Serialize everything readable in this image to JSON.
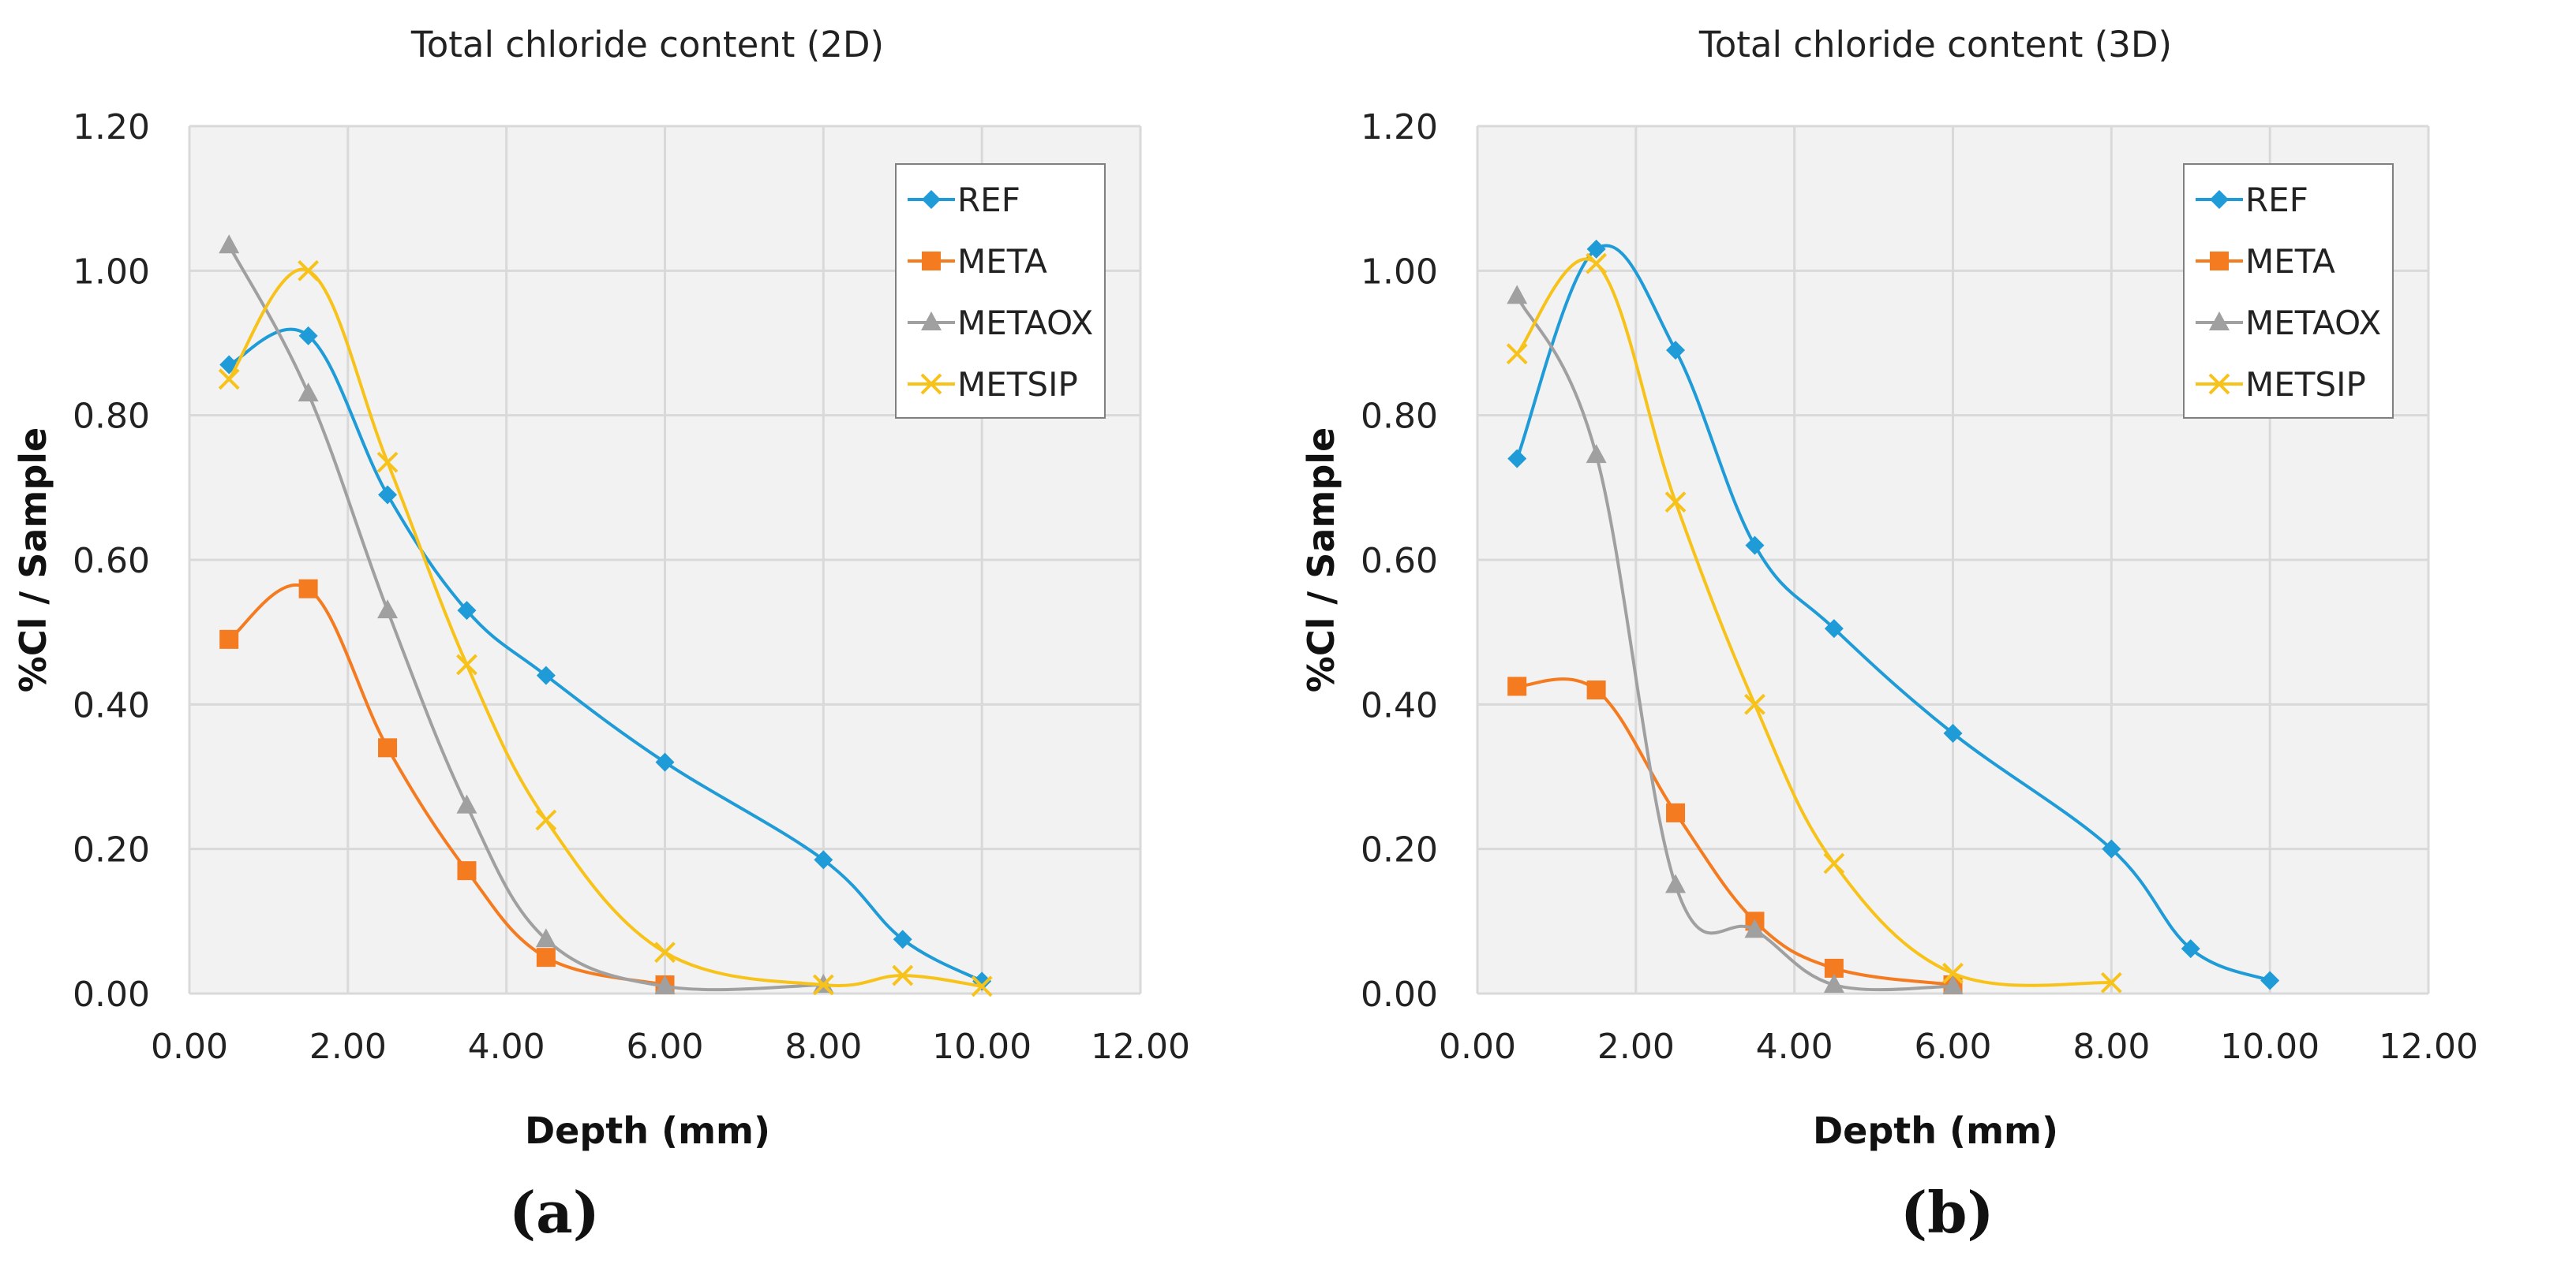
{
  "captions": [
    "(a)",
    "(b)"
  ],
  "chart_data": [
    {
      "type": "line",
      "title": "Total chloride content (2D)",
      "xlabel": "Depth (mm)",
      "ylabel": "%Cl / Sample",
      "xlim": [
        0,
        12
      ],
      "ylim": [
        0,
        1.2
      ],
      "xticks": [
        "0.00",
        "2.00",
        "4.00",
        "6.00",
        "8.00",
        "10.00",
        "12.00"
      ],
      "yticks": [
        "0.00",
        "0.20",
        "0.40",
        "0.60",
        "0.80",
        "1.00",
        "1.20"
      ],
      "grid": true,
      "legend": "top-right",
      "series": [
        {
          "name": "REF",
          "color": "#1f9bd7",
          "marker": "diamond",
          "x": [
            0.5,
            1.5,
            2.5,
            3.5,
            4.5,
            6,
            8,
            9,
            10
          ],
          "y": [
            0.87,
            0.91,
            0.69,
            0.53,
            0.44,
            0.32,
            0.185,
            0.075,
            0.017
          ]
        },
        {
          "name": "META",
          "color": "#f47b20",
          "marker": "square",
          "x": [
            0.5,
            1.5,
            2.5,
            3.5,
            4.5,
            6
          ],
          "y": [
            0.49,
            0.56,
            0.34,
            0.17,
            0.05,
            0.012
          ]
        },
        {
          "name": "METAOX",
          "color": "#a0a0a0",
          "marker": "triangle",
          "x": [
            0.5,
            1.5,
            2.5,
            3.5,
            4.5,
            6,
            8
          ],
          "y": [
            1.035,
            0.83,
            0.53,
            0.26,
            0.075,
            0.01,
            0.012
          ]
        },
        {
          "name": "METSIP",
          "color": "#f7c31a",
          "marker": "x",
          "x": [
            0.5,
            1.5,
            2.5,
            3.5,
            4.5,
            6,
            8,
            9,
            10
          ],
          "y": [
            0.85,
            1.0,
            0.735,
            0.455,
            0.24,
            0.057,
            0.012,
            0.025,
            0.01
          ]
        }
      ]
    },
    {
      "type": "line",
      "title": "Total chloride content (3D)",
      "xlabel": "Depth (mm)",
      "ylabel": "%Cl / Sample",
      "xlim": [
        0,
        12
      ],
      "ylim": [
        0,
        1.2
      ],
      "xticks": [
        "0.00",
        "2.00",
        "4.00",
        "6.00",
        "8.00",
        "10.00",
        "12.00"
      ],
      "yticks": [
        "0.00",
        "0.20",
        "0.40",
        "0.60",
        "0.80",
        "1.00",
        "1.20"
      ],
      "grid": true,
      "legend": "top-right",
      "series": [
        {
          "name": "REF",
          "color": "#1f9bd7",
          "marker": "diamond",
          "x": [
            0.5,
            1.5,
            2.5,
            3.5,
            4.5,
            6,
            8,
            9,
            10
          ],
          "y": [
            0.74,
            1.03,
            0.89,
            0.62,
            0.505,
            0.36,
            0.2,
            0.062,
            0.018
          ]
        },
        {
          "name": "META",
          "color": "#f47b20",
          "marker": "square",
          "x": [
            0.5,
            1.5,
            2.5,
            3.5,
            4.5,
            6
          ],
          "y": [
            0.425,
            0.42,
            0.25,
            0.1,
            0.035,
            0.012
          ]
        },
        {
          "name": "METAOX",
          "color": "#a0a0a0",
          "marker": "triangle",
          "x": [
            0.5,
            1.5,
            2.5,
            3.5,
            4.5,
            6
          ],
          "y": [
            0.965,
            0.745,
            0.15,
            0.088,
            0.012,
            0.01
          ]
        },
        {
          "name": "METSIP",
          "color": "#f7c31a",
          "marker": "x",
          "x": [
            0.5,
            1.5,
            2.5,
            3.5,
            4.5,
            6,
            8
          ],
          "y": [
            0.885,
            1.01,
            0.68,
            0.4,
            0.18,
            0.028,
            0.015
          ]
        }
      ]
    }
  ]
}
